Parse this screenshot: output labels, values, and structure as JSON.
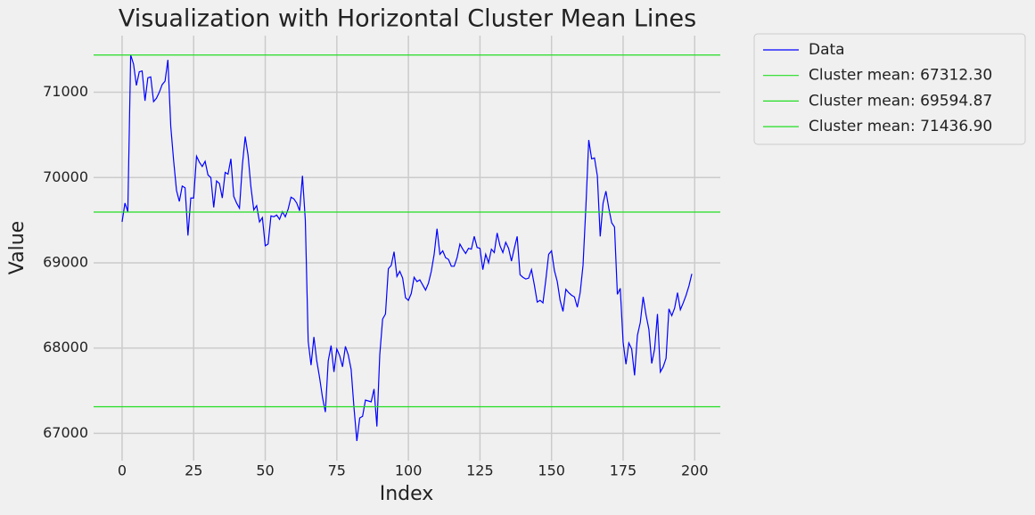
{
  "chart_data": {
    "type": "line",
    "title": "Visualization with Horizontal Cluster Mean Lines",
    "x_label": "Index",
    "y_label": "Value",
    "x": [
      0,
      1,
      2,
      3,
      4,
      5,
      6,
      7,
      8,
      9,
      10,
      11,
      12,
      13,
      14,
      15,
      16,
      17,
      18,
      19,
      20,
      21,
      22,
      23,
      24,
      25,
      26,
      27,
      28,
      29,
      30,
      31,
      32,
      33,
      34,
      35,
      36,
      37,
      38,
      39,
      40,
      41,
      42,
      43,
      44,
      45,
      46,
      47,
      48,
      49,
      50,
      51,
      52,
      53,
      54,
      55,
      56,
      57,
      58,
      59,
      60,
      61,
      62,
      63,
      64,
      65,
      66,
      67,
      68,
      69,
      70,
      71,
      72,
      73,
      74,
      75,
      76,
      77,
      78,
      79,
      80,
      81,
      82,
      83,
      84,
      85,
      86,
      87,
      88,
      89,
      90,
      91,
      92,
      93,
      94,
      95,
      96,
      97,
      98,
      99,
      100,
      101,
      102,
      103,
      104,
      105,
      106,
      107,
      108,
      109,
      110,
      111,
      112,
      113,
      114,
      115,
      116,
      117,
      118,
      119,
      120,
      121,
      122,
      123,
      124,
      125,
      126,
      127,
      128,
      129,
      130,
      131,
      132,
      133,
      134,
      135,
      136,
      137,
      138,
      139,
      140,
      141,
      142,
      143,
      144,
      145,
      146,
      147,
      148,
      149,
      150,
      151,
      152,
      153,
      154,
      155,
      156,
      157,
      158,
      159,
      160,
      161,
      162,
      163,
      164,
      165,
      166,
      167,
      168,
      169,
      170,
      171,
      172,
      173,
      174,
      175,
      176,
      177,
      178,
      179,
      180,
      181,
      182,
      183,
      184,
      185,
      186,
      187,
      188,
      189,
      190,
      191,
      192,
      193,
      194,
      195,
      196,
      197,
      198,
      199
    ],
    "series": [
      {
        "name": "Data",
        "color": "#0000ff",
        "values": [
          69480,
          69700,
          69600,
          71437,
          71330,
          71080,
          71240,
          71250,
          70900,
          71170,
          71180,
          70890,
          70930,
          71000,
          71090,
          71130,
          71380,
          70600,
          70200,
          69850,
          69720,
          69900,
          69880,
          69320,
          69760,
          69760,
          70250,
          70180,
          70130,
          70190,
          70030,
          70000,
          69650,
          69960,
          69930,
          69760,
          70060,
          70040,
          70220,
          69780,
          69700,
          69640,
          70140,
          70480,
          70260,
          69890,
          69620,
          69670,
          69480,
          69530,
          69200,
          69220,
          69550,
          69540,
          69560,
          69510,
          69600,
          69540,
          69630,
          69770,
          69750,
          69700,
          69610,
          70020,
          69500,
          68080,
          67800,
          68130,
          67850,
          67650,
          67420,
          67250,
          67850,
          68030,
          67720,
          67990,
          67910,
          67780,
          68020,
          67920,
          67750,
          67300,
          66910,
          67180,
          67200,
          67390,
          67380,
          67370,
          67520,
          67080,
          67920,
          68340,
          68400,
          68930,
          68970,
          69130,
          68840,
          68900,
          68820,
          68590,
          68560,
          68640,
          68830,
          68780,
          68800,
          68740,
          68680,
          68760,
          68900,
          69100,
          69400,
          69100,
          69140,
          69060,
          69040,
          68960,
          68960,
          69060,
          69220,
          69160,
          69110,
          69170,
          69160,
          69310,
          69180,
          69170,
          68920,
          69100,
          69000,
          69160,
          69120,
          69350,
          69200,
          69120,
          69240,
          69170,
          69020,
          69170,
          69310,
          68860,
          68830,
          68810,
          68820,
          68920,
          68740,
          68540,
          68560,
          68530,
          68800,
          69100,
          69140,
          68910,
          68780,
          68560,
          68430,
          68690,
          68650,
          68620,
          68600,
          68480,
          68650,
          68970,
          69660,
          70440,
          70220,
          70230,
          70020,
          69310,
          69700,
          69840,
          69640,
          69470,
          69420,
          68630,
          68700,
          68070,
          67810,
          68060,
          67990,
          67680,
          68150,
          68300,
          68600,
          68390,
          68220,
          67820,
          67990,
          68400,
          67720,
          67780,
          67880,
          68460,
          68380,
          68470,
          68650,
          68450,
          68530,
          68620,
          68730,
          68870
        ]
      }
    ],
    "hlines": [
      {
        "name": "Cluster mean: 67312.30",
        "value": 67312.3,
        "color": "#22dd22"
      },
      {
        "name": "Cluster mean: 69594.87",
        "value": 69594.87,
        "color": "#22dd22"
      },
      {
        "name": "Cluster mean: 71436.90",
        "value": 71436.9,
        "color": "#22dd22"
      }
    ],
    "xlim": [
      -9.95,
      208.95
    ],
    "xticks": [
      0,
      25,
      50,
      75,
      100,
      125,
      150,
      175,
      200
    ],
    "ylim": [
      66680,
      71664
    ],
    "yticks": [
      67000,
      68000,
      69000,
      70000,
      71000
    ],
    "grid": true,
    "legend": "outside-right"
  }
}
